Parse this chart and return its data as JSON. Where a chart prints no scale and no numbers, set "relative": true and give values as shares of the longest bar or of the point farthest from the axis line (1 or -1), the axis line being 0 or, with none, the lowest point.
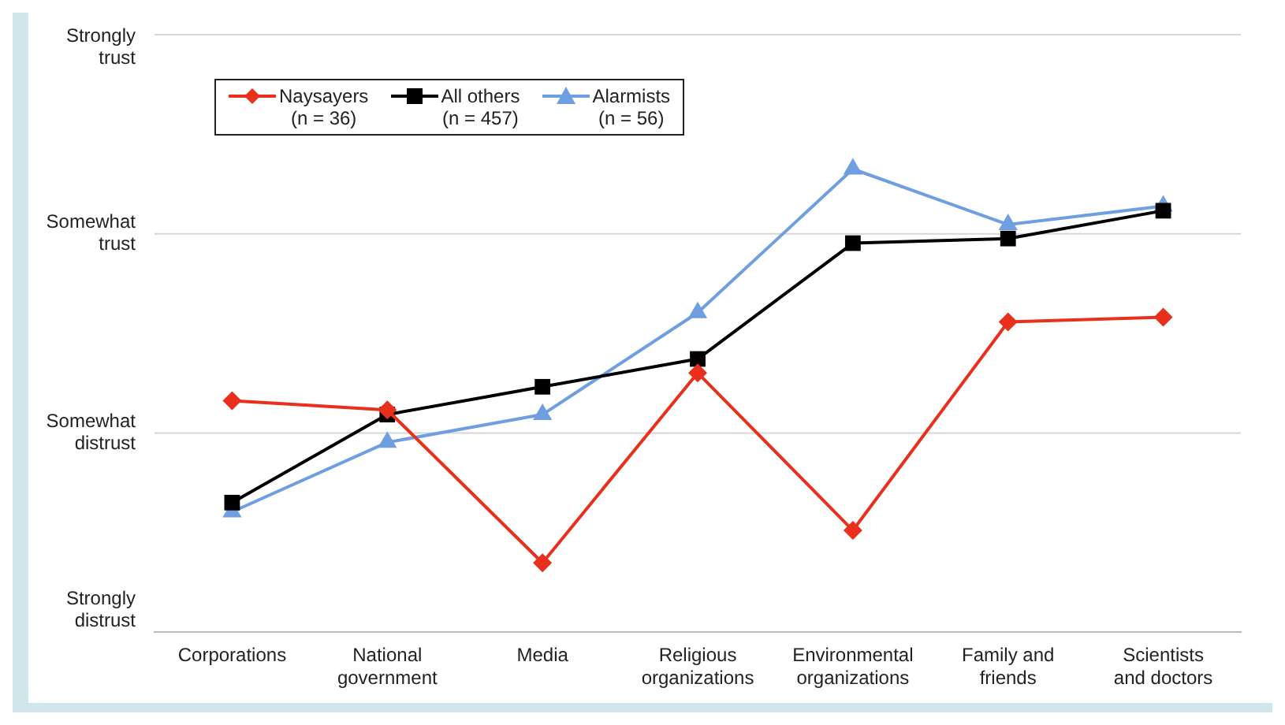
{
  "chart_data": {
    "type": "line",
    "relative": true,
    "categories": [
      "Corporations",
      "National government",
      "Media",
      "Religious organizations",
      "Environmental organizations",
      "Family and friends",
      "Scientists and doctors"
    ],
    "series": [
      {
        "name": "Naysayers (n = 36)",
        "color": "#e8301c",
        "marker": "diamond",
        "values": [
          0.5,
          0.48,
          0.15,
          0.56,
          0.22,
          0.67,
          0.68
        ]
      },
      {
        "name": "All others (n = 457)",
        "color": "#000000",
        "marker": "square",
        "values": [
          0.28,
          0.47,
          0.53,
          0.59,
          0.84,
          0.85,
          0.91
        ]
      },
      {
        "name": "Alarmists (n = 56)",
        "color": "#6f9fe0",
        "marker": "triangle",
        "values": [
          0.26,
          0.41,
          0.47,
          0.69,
          1,
          0.88,
          0.92
        ]
      }
    ],
    "annotations": [
      "Strongly distrust"
    ],
    "ref_lines": [
      {
        "axis": "y",
        "value": 0.43,
        "label": "Somewhat distrust",
        "color": "#d6d6d6"
      },
      {
        "axis": "y",
        "value": 0.86,
        "label": "Somewhat trust",
        "color": "#d6d6d6"
      },
      {
        "axis": "y",
        "value": 1.29,
        "label": "Strongly trust",
        "color": "#d6d6d6"
      }
    ],
    "legend": "top left"
  }
}
